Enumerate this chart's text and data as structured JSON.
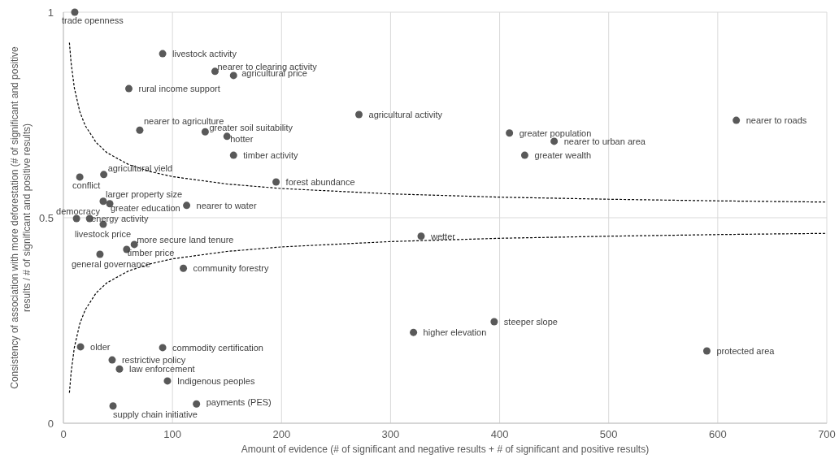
{
  "chart_data": {
    "type": "scatter",
    "xlabel": "Amount of evidence (# of significant and negative results + # of significant and positive results)",
    "ylabel": "Consistency of association with more deforestation (# of significant and positive\nresults / # of significant and positive results)",
    "xlim": [
      0,
      700
    ],
    "xticks": [
      0,
      100,
      200,
      300,
      400,
      500,
      600,
      700
    ],
    "ylim": [
      0,
      1
    ],
    "yticks": [
      0,
      0.5,
      1
    ],
    "grid": true,
    "series": [
      {
        "color": "#595959",
        "marker": "circle",
        "x": [
          10.4,
          91,
          139,
          156,
          60,
          271,
          409,
          617,
          450,
          423,
          70,
          130,
          150,
          156,
          195,
          37,
          15,
          36.5,
          42.5,
          113,
          12,
          24,
          36.5,
          65,
          58,
          33.5,
          110,
          328,
          395,
          321,
          590,
          15.7,
          91,
          44.7,
          51.4,
          95.4,
          122,
          45.5
        ],
        "values": [
          1.0,
          0.899,
          0.856,
          0.846,
          0.814,
          0.751,
          0.706,
          0.737,
          0.686,
          0.652,
          0.713,
          0.709,
          0.698,
          0.652,
          0.587,
          0.605,
          0.599,
          0.54,
          0.534,
          0.53,
          0.498,
          0.498,
          0.484,
          0.435,
          0.423,
          0.411,
          0.377,
          0.455,
          0.247,
          0.221,
          0.176,
          0.186,
          0.184,
          0.154,
          0.132,
          0.103,
          0.047,
          0.042
        ]
      },
      {
        "type": "line",
        "color": "#000000",
        "marker": "none",
        "line_style": "dashed",
        "x": [
          5.5,
          7,
          10,
          15,
          20,
          30,
          40,
          60,
          80,
          100,
          150,
          200,
          300,
          400,
          500,
          600,
          700
        ],
        "values": [
          0.926,
          0.878,
          0.816,
          0.758,
          0.724,
          0.683,
          0.658,
          0.629,
          0.612,
          0.6,
          0.582,
          0.571,
          0.558,
          0.55,
          0.545,
          0.541,
          0.538
        ]
      },
      {
        "type": "line",
        "color": "#000000",
        "marker": "none",
        "line_style": "dashed",
        "x": [
          5.5,
          7,
          10,
          15,
          20,
          30,
          40,
          60,
          80,
          100,
          150,
          200,
          300,
          400,
          500,
          600,
          700
        ],
        "values": [
          0.074,
          0.122,
          0.184,
          0.242,
          0.276,
          0.317,
          0.342,
          0.371,
          0.388,
          0.4,
          0.418,
          0.429,
          0.442,
          0.45,
          0.455,
          0.459,
          0.462
        ]
      }
    ],
    "annotations": [
      {
        "text": "trade openness",
        "x": 10.4,
        "y": 1.0
      },
      {
        "text": "livestock activity",
        "x": 91,
        "y": 0.899
      },
      {
        "text": "nearer to clearing activity",
        "x": 139,
        "y": 0.856
      },
      {
        "text": "agricultural price",
        "x": 156,
        "y": 0.846
      },
      {
        "text": "rural income support",
        "x": 60,
        "y": 0.814
      },
      {
        "text": "agricultural activity",
        "x": 271,
        "y": 0.751
      },
      {
        "text": "greater population",
        "x": 409,
        "y": 0.706
      },
      {
        "text": "nearer to roads",
        "x": 617,
        "y": 0.737
      },
      {
        "text": "nearer to urban area",
        "x": 450,
        "y": 0.686
      },
      {
        "text": "greater wealth",
        "x": 423,
        "y": 0.652
      },
      {
        "text": "nearer to agriculture",
        "x": 70,
        "y": 0.713
      },
      {
        "text": "greater soil suitability",
        "x": 130,
        "y": 0.709
      },
      {
        "text": "hotter",
        "x": 150,
        "y": 0.698
      },
      {
        "text": "timber activity",
        "x": 156,
        "y": 0.652
      },
      {
        "text": "forest abundance",
        "x": 195,
        "y": 0.587
      },
      {
        "text": "agricultural yield",
        "x": 37,
        "y": 0.605
      },
      {
        "text": "conflict",
        "x": 15,
        "y": 0.599
      },
      {
        "text": "larger property size",
        "x": 36.5,
        "y": 0.54
      },
      {
        "text": "greater education",
        "x": 42.5,
        "y": 0.534
      },
      {
        "text": "nearer to water",
        "x": 113,
        "y": 0.53
      },
      {
        "text": "democracy",
        "x": 12,
        "y": 0.498
      },
      {
        "text": "energy activity",
        "x": 24,
        "y": 0.498
      },
      {
        "text": "livestock price",
        "x": 36.5,
        "y": 0.484
      },
      {
        "text": "more secure land tenure",
        "x": 65,
        "y": 0.435
      },
      {
        "text": "timber price",
        "x": 58,
        "y": 0.423
      },
      {
        "text": "general governance",
        "x": 33.5,
        "y": 0.411
      },
      {
        "text": "community forestry",
        "x": 110,
        "y": 0.377
      },
      {
        "text": "wetter",
        "x": 328,
        "y": 0.455
      },
      {
        "text": "steeper slope",
        "x": 395,
        "y": 0.247
      },
      {
        "text": "higher elevation",
        "x": 321,
        "y": 0.221
      },
      {
        "text": "protected area",
        "x": 590,
        "y": 0.176
      },
      {
        "text": "older",
        "x": 15.7,
        "y": 0.186
      },
      {
        "text": "commodity certification",
        "x": 91,
        "y": 0.184
      },
      {
        "text": "restrictive policy",
        "x": 44.7,
        "y": 0.154
      },
      {
        "text": "law enforcement",
        "x": 51.4,
        "y": 0.132
      },
      {
        "text": "Indigenous peoples",
        "x": 95.4,
        "y": 0.103
      },
      {
        "text": "payments (PES)",
        "x": 122,
        "y": 0.047
      },
      {
        "text": "supply chain initiative",
        "x": 45.5,
        "y": 0.042
      }
    ]
  }
}
